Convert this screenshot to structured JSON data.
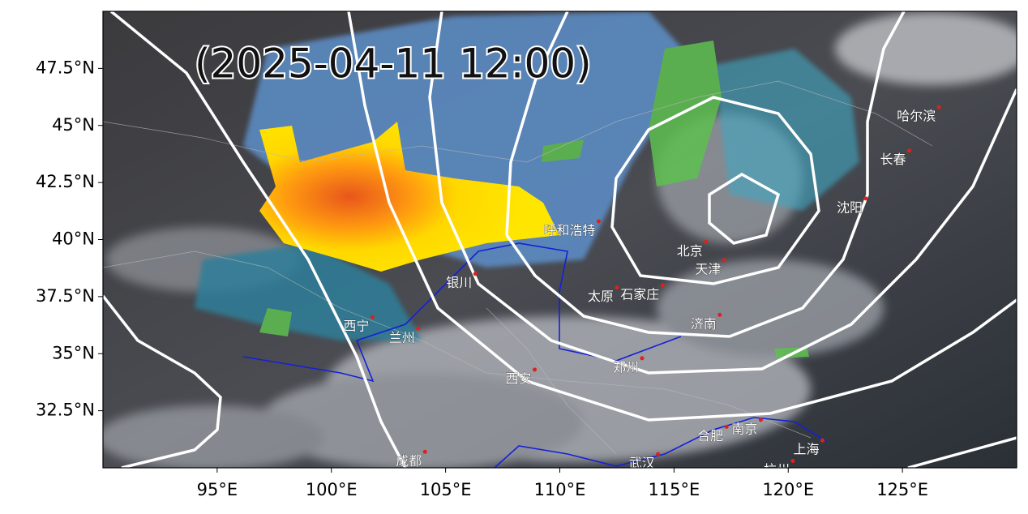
{
  "map": {
    "title": "(2025-04-11 12:00)",
    "xlim": [
      90,
      130
    ],
    "ylim": [
      30,
      50
    ],
    "xticks": [
      {
        "value": 95,
        "label": "95°E"
      },
      {
        "value": 100,
        "label": "100°E"
      },
      {
        "value": 105,
        "label": "105°E"
      },
      {
        "value": 110,
        "label": "110°E"
      },
      {
        "value": 115,
        "label": "115°E"
      },
      {
        "value": 120,
        "label": "120°E"
      },
      {
        "value": 125,
        "label": "125°E"
      }
    ],
    "yticks": [
      {
        "value": 32.5,
        "label": "32.5°N"
      },
      {
        "value": 35,
        "label": "35°N"
      },
      {
        "value": 37.5,
        "label": "37.5°N"
      },
      {
        "value": 40,
        "label": "40°N"
      },
      {
        "value": 42.5,
        "label": "42.5°N"
      },
      {
        "value": 45,
        "label": "45°N"
      },
      {
        "value": 47.5,
        "label": "47.5°N"
      }
    ],
    "cities": [
      {
        "name": "哈尔滨",
        "lon": 126.6,
        "lat": 45.8
      },
      {
        "name": "长春",
        "lon": 125.3,
        "lat": 43.9
      },
      {
        "name": "沈阳",
        "lon": 123.4,
        "lat": 41.8
      },
      {
        "name": "北京",
        "lon": 116.4,
        "lat": 39.9
      },
      {
        "name": "天津",
        "lon": 117.2,
        "lat": 39.1
      },
      {
        "name": "呼和浩特",
        "lon": 111.7,
        "lat": 40.8
      },
      {
        "name": "石家庄",
        "lon": 114.5,
        "lat": 38.0
      },
      {
        "name": "太原",
        "lon": 112.5,
        "lat": 37.9
      },
      {
        "name": "济南",
        "lon": 117.0,
        "lat": 36.7
      },
      {
        "name": "银川",
        "lon": 106.3,
        "lat": 38.5
      },
      {
        "name": "西宁",
        "lon": 101.8,
        "lat": 36.6
      },
      {
        "name": "兰州",
        "lon": 103.8,
        "lat": 36.1
      },
      {
        "name": "西安",
        "lon": 108.9,
        "lat": 34.3
      },
      {
        "name": "郑州",
        "lon": 113.6,
        "lat": 34.8
      },
      {
        "name": "南京",
        "lon": 118.8,
        "lat": 32.1
      },
      {
        "name": "合肥",
        "lon": 117.3,
        "lat": 31.8
      },
      {
        "name": "上海",
        "lon": 121.5,
        "lat": 31.2
      },
      {
        "name": "杭州",
        "lon": 120.2,
        "lat": 30.3
      },
      {
        "name": "武汉",
        "lon": 114.3,
        "lat": 30.6
      },
      {
        "name": "成都",
        "lon": 104.1,
        "lat": 30.7
      }
    ]
  }
}
